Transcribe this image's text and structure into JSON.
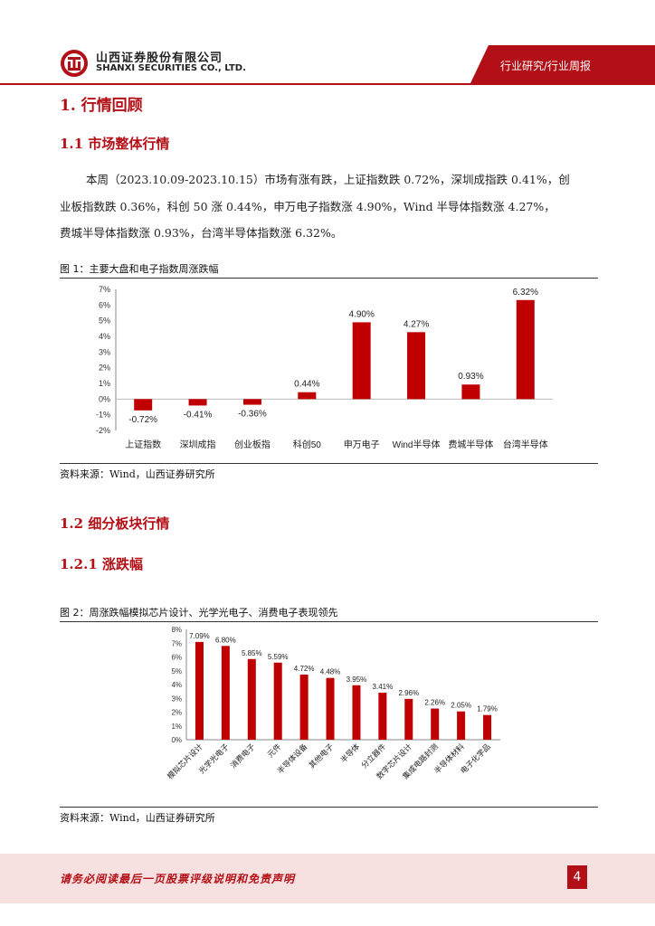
{
  "header": {
    "company_cn": "山西证券股份有限公司",
    "company_en": "SHANXI SECURITIES CO., LTD.",
    "tag": "行业研究/行业周报",
    "brand_color": "#b30f16"
  },
  "section1": {
    "title": "1. 行情回顾"
  },
  "section1_1": {
    "title": "1.1  市场整体行情",
    "paragraph": [
      "本周（2023.10.09-2023.10.15）市场有涨有跌，上证指数跌 0.72%，深圳成指跌 0.41%，创",
      "业板指数跌 0.36%，科创 50 涨 0.44%，申万电子指数涨 4.90%，Wind 半导体指数涨 4.27%，",
      "费城半导体指数涨 0.93%，台湾半导体指数涨 6.32%。"
    ]
  },
  "figure1": {
    "title": "图 1：主要大盘和电子指数周涨跌幅",
    "source": "资料来源：Wind，山西证券研究所"
  },
  "section1_2": {
    "title": "1.2  细分板块行情"
  },
  "section1_2_1": {
    "title": "1.2.1  涨跌幅"
  },
  "figure2": {
    "title": "图 2：周涨跌幅模拟芯片设计、光学光电子、消费电子表现领先",
    "source": "资料来源：Wind，山西证券研究所"
  },
  "footer": {
    "notice": "请务必阅读最后一页股票评级说明和免责声明",
    "page": "4"
  },
  "chart_data": [
    {
      "type": "bar",
      "categories": [
        "上证指数",
        "深圳成指",
        "创业板指",
        "科创50",
        "申万电子",
        "Wind半导体",
        "费城半导体",
        "台湾半导体"
      ],
      "values": [
        -0.72,
        -0.41,
        -0.36,
        0.44,
        4.9,
        4.27,
        0.93,
        6.32
      ],
      "value_labels": [
        "-0.72%",
        "-0.41%",
        "-0.36%",
        "0.44%",
        "4.90%",
        "4.27%",
        "0.93%",
        "6.32%"
      ],
      "yticks": [
        "7%",
        "6%",
        "5%",
        "4%",
        "3%",
        "2%",
        "1%",
        "0%",
        "-1%",
        "-2%"
      ],
      "ylim": [
        -2,
        7
      ],
      "grid": false,
      "color": "#c00000"
    },
    {
      "type": "bar",
      "categories": [
        "模拟芯片设计",
        "光学光电子",
        "消费电子",
        "元件",
        "半导体设备",
        "其他电子",
        "半导体",
        "分立器件",
        "数字芯片设计",
        "集成电路封测",
        "半导体材料",
        "电子化学品"
      ],
      "values": [
        7.09,
        6.8,
        5.85,
        5.59,
        4.72,
        4.48,
        3.95,
        3.41,
        2.96,
        2.26,
        2.05,
        1.79
      ],
      "value_labels": [
        "7.09%",
        "6.80%",
        "5.85%",
        "5.59%",
        "4.72%",
        "4.48%",
        "3.95%",
        "3.41%",
        "2.96%",
        "2.26%",
        "2.05%",
        "1.79%"
      ],
      "yticks": [
        "8%",
        "7%",
        "6%",
        "5%",
        "4%",
        "3%",
        "2%",
        "1%",
        "0%"
      ],
      "ylim": [
        0,
        8
      ],
      "grid": false,
      "color": "#c00000"
    }
  ]
}
